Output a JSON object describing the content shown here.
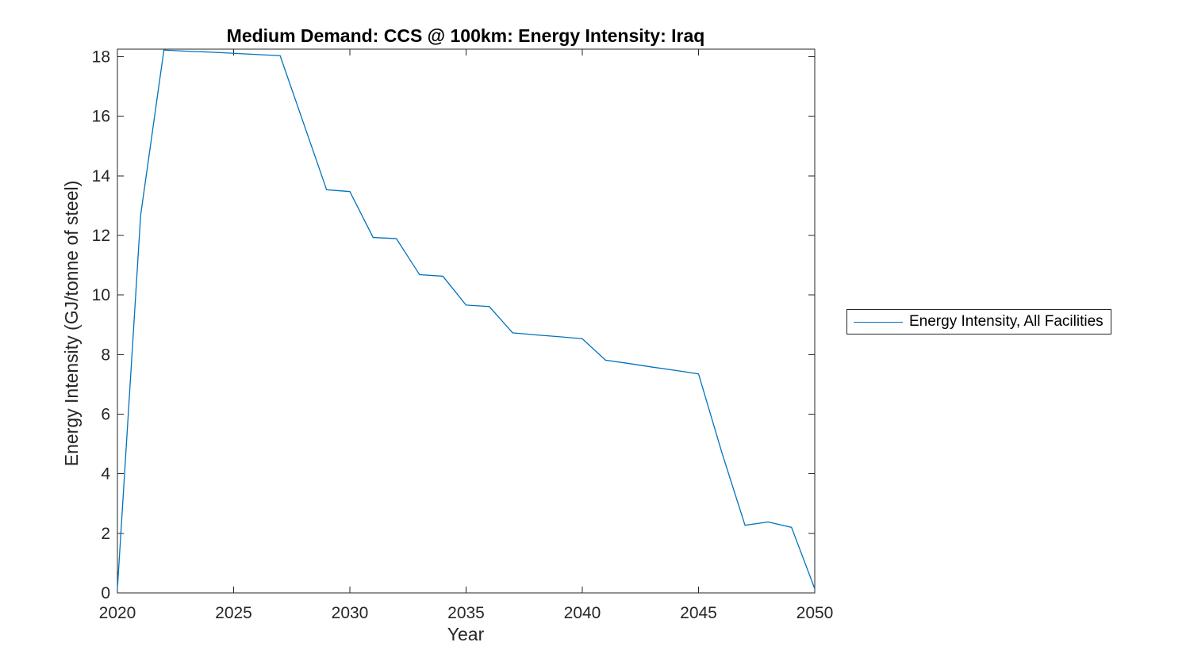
{
  "figure": {
    "background_color": "#ffffff",
    "axis_color": "#262626",
    "title_color": "#000000"
  },
  "chart_data": {
    "type": "line",
    "title": "Medium Demand: CCS @ 100km: Energy Intensity: Iraq",
    "xlabel": "Year",
    "ylabel": "Energy Intensity (GJ/tonne of steel)",
    "xlim": [
      2020,
      2050
    ],
    "ylim": [
      0,
      18.25
    ],
    "xticks": [
      2020,
      2025,
      2030,
      2035,
      2040,
      2045,
      2050
    ],
    "yticks": [
      0,
      2,
      4,
      6,
      8,
      10,
      12,
      14,
      16,
      18
    ],
    "grid": false,
    "box": true,
    "tick_direction": "in",
    "legend_position": "outside-right",
    "series": [
      {
        "name": "Energy Intensity, All Facilities",
        "color": "#0072BD",
        "x": [
          2020,
          2021,
          2022,
          2023,
          2024,
          2025,
          2026,
          2027,
          2028,
          2029,
          2030,
          2031,
          2032,
          2033,
          2034,
          2035,
          2036,
          2037,
          2038,
          2039,
          2040,
          2041,
          2042,
          2043,
          2044,
          2045,
          2046,
          2047,
          2048,
          2049,
          2050
        ],
        "y": [
          0.14,
          12.68,
          18.22,
          18.18,
          18.15,
          18.11,
          18.07,
          18.03,
          15.78,
          13.53,
          13.47,
          11.93,
          11.89,
          10.68,
          10.63,
          9.66,
          9.61,
          8.73,
          8.66,
          8.6,
          8.53,
          7.81,
          7.7,
          7.58,
          7.47,
          7.35,
          4.72,
          2.27,
          2.38,
          2.2,
          0.14
        ]
      }
    ]
  }
}
